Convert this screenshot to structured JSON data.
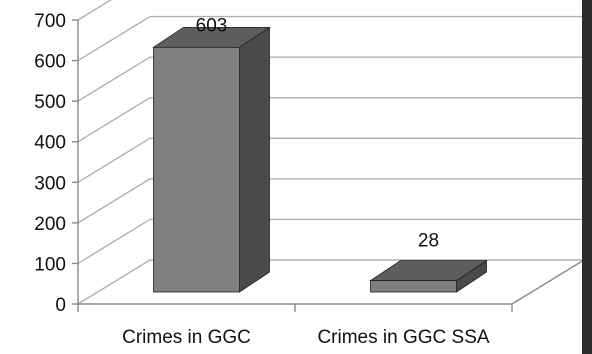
{
  "chart_data": {
    "type": "bar",
    "style": "3d-column",
    "categories": [
      "Crimes in GGC",
      "Crimes in GGC SSA"
    ],
    "values": [
      603,
      28
    ],
    "data_labels": [
      "603",
      "28"
    ],
    "y_ticks": [
      "0",
      "100",
      "200",
      "300",
      "400",
      "500",
      "600",
      "700"
    ],
    "ylim": [
      0,
      700
    ],
    "grid": true,
    "legend": "none",
    "colors": {
      "bar_front": "#808080",
      "bar_top": "#5e5e5e",
      "bar_side": "#4a4a4a",
      "grid": "#b0b0b0",
      "axis": "#8a8a8a",
      "edge": "#222222"
    }
  }
}
